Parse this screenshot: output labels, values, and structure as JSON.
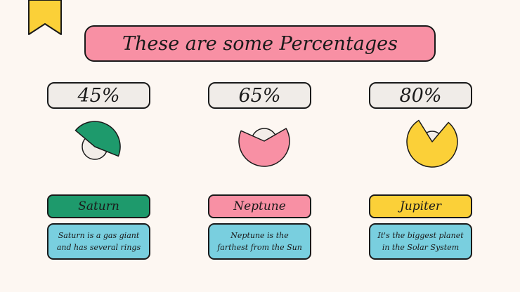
{
  "title": "These are some Percentages",
  "colors": {
    "background": "#fdf7f2",
    "banner": "#f890a4",
    "bookmark": "#fbd038",
    "description": "#79cfdf",
    "pie_base": "#f2ede8"
  },
  "items": [
    {
      "percentage": "45%",
      "value": 45,
      "name": "Saturn",
      "description": "Saturn is a gas giant and has several rings",
      "color": "#1e9a6c"
    },
    {
      "percentage": "65%",
      "value": 65,
      "name": "Neptune",
      "description": "Neptune is the farthest from the Sun",
      "color": "#f890a4"
    },
    {
      "percentage": "80%",
      "value": 80,
      "name": "Jupiter",
      "description": "It's the biggest planet in the Solar System",
      "color": "#fbd038"
    }
  ]
}
